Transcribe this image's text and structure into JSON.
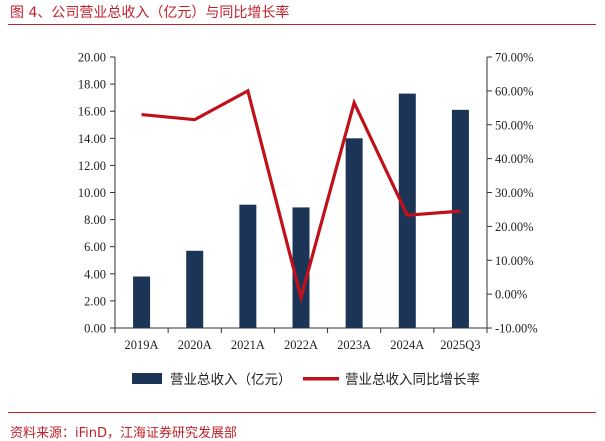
{
  "figure": {
    "title": "图 4、公司营业总收入（亿元）与同比增长率",
    "source": "资料来源：iFinD，江海证券研究发展部"
  },
  "colors": {
    "bar": "#1c3557",
    "line": "#c0111b",
    "accent": "#c0202a",
    "axis": "#333333"
  },
  "chart_data": {
    "type": "bar",
    "categories": [
      "2019A",
      "2020A",
      "2021A",
      "2022A",
      "2023A",
      "2024A",
      "2025Q3"
    ],
    "series": [
      {
        "name": "营业总收入（亿元）",
        "type": "bar",
        "axis": "left",
        "values": [
          3.8,
          5.7,
          9.1,
          8.9,
          14.0,
          17.3,
          16.1
        ]
      },
      {
        "name": "营业总收入同比增长率",
        "type": "line",
        "axis": "right",
        "values": [
          53.0,
          51.5,
          60.0,
          -1.0,
          56.5,
          23.3,
          24.5
        ]
      }
    ],
    "ylim_left": [
      0,
      20
    ],
    "yticks_left": [
      "0.00",
      "2.00",
      "4.00",
      "6.00",
      "8.00",
      "10.00",
      "12.00",
      "14.00",
      "16.00",
      "18.00",
      "20.00"
    ],
    "ylim_right": [
      -10,
      70
    ],
    "yticks_right": [
      "-10.00%",
      "0.00%",
      "10.00%",
      "20.00%",
      "30.00%",
      "40.00%",
      "50.00%",
      "60.00%",
      "70.00%"
    ],
    "legend_position": "bottom",
    "grid": false
  }
}
